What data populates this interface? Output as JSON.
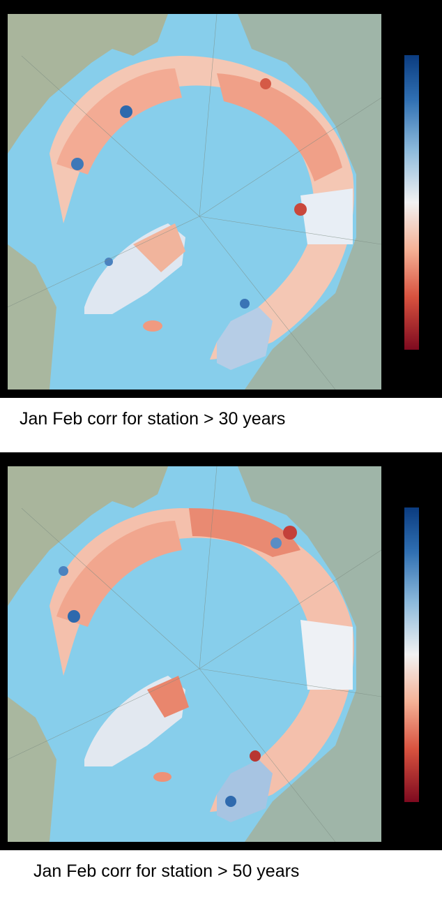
{
  "panels": [
    {
      "caption": "Jan Feb corr for station > 30 years"
    },
    {
      "caption": "Jan Feb corr for station > 50 years"
    }
  ],
  "colors": {
    "ocean": "#87ceeb",
    "land": "#9bb4a4",
    "colorbar_high": "#0b3c80",
    "colorbar_mid": "#f2f2f2",
    "colorbar_low": "#7e0a1f"
  },
  "colorbar": {
    "colormap": "RdBu",
    "ticks_shown": false
  }
}
